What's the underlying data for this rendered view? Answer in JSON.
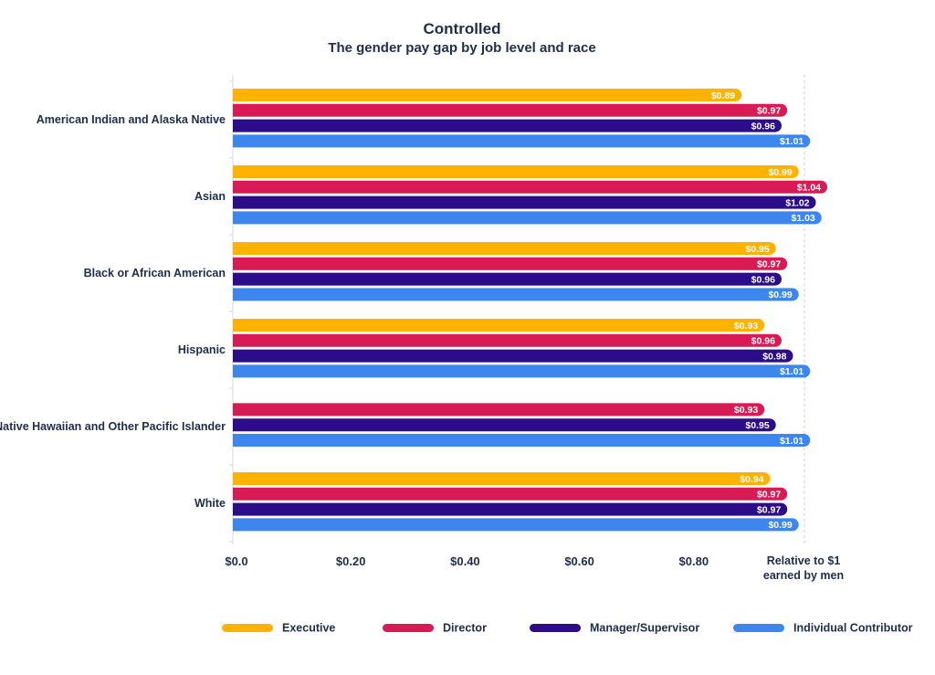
{
  "chart_data": {
    "type": "bar",
    "orientation": "horizontal",
    "title": "Controlled",
    "subtitle": "The gender pay gap by job level and race",
    "xlabel": "Relative to $1 earned by men",
    "xlabel_lines": [
      "Relative to $1",
      "earned by men"
    ],
    "xlim": [
      0,
      1.0
    ],
    "x_ticks": [
      0,
      0.2,
      0.4,
      0.6,
      0.8
    ],
    "x_tick_labels": [
      "$0.0",
      "$0.20",
      "$0.40",
      "$0.60",
      "$0.80"
    ],
    "reference_line": 1.0,
    "categories": [
      "American Indian and Alaska Native",
      "Asian",
      "Black or African American",
      "Hispanic",
      "Native Hawaiian and Other Pacific Islander",
      "White"
    ],
    "series": [
      {
        "name": "Executive",
        "color": "#FFB300",
        "values": [
          0.89,
          0.99,
          0.95,
          0.93,
          null,
          0.94
        ],
        "labels": [
          "$0.89",
          "$0.99",
          "$0.95",
          "$0.93",
          null,
          "$0.94"
        ]
      },
      {
        "name": "Director",
        "color": "#D81B55",
        "values": [
          0.97,
          1.04,
          0.97,
          0.96,
          0.93,
          0.97
        ],
        "labels": [
          "$0.97",
          "$1.04",
          "$0.97",
          "$0.96",
          "$0.93",
          "$0.97"
        ]
      },
      {
        "name": "Manager/Supervisor",
        "color": "#2D0C8C",
        "values": [
          0.96,
          1.02,
          0.96,
          0.98,
          0.95,
          0.97
        ],
        "labels": [
          "$0.96",
          "$1.02",
          "$0.96",
          "$0.98",
          "$0.95",
          "$0.97"
        ]
      },
      {
        "name": "Individual Contributor",
        "color": "#3D86EE",
        "values": [
          1.01,
          1.03,
          0.99,
          1.01,
          1.01,
          0.99
        ],
        "labels": [
          "$1.01",
          "$1.03",
          "$0.99",
          "$1.01",
          "$1.01",
          "$0.99"
        ]
      }
    ],
    "legend_position": "bottom"
  }
}
